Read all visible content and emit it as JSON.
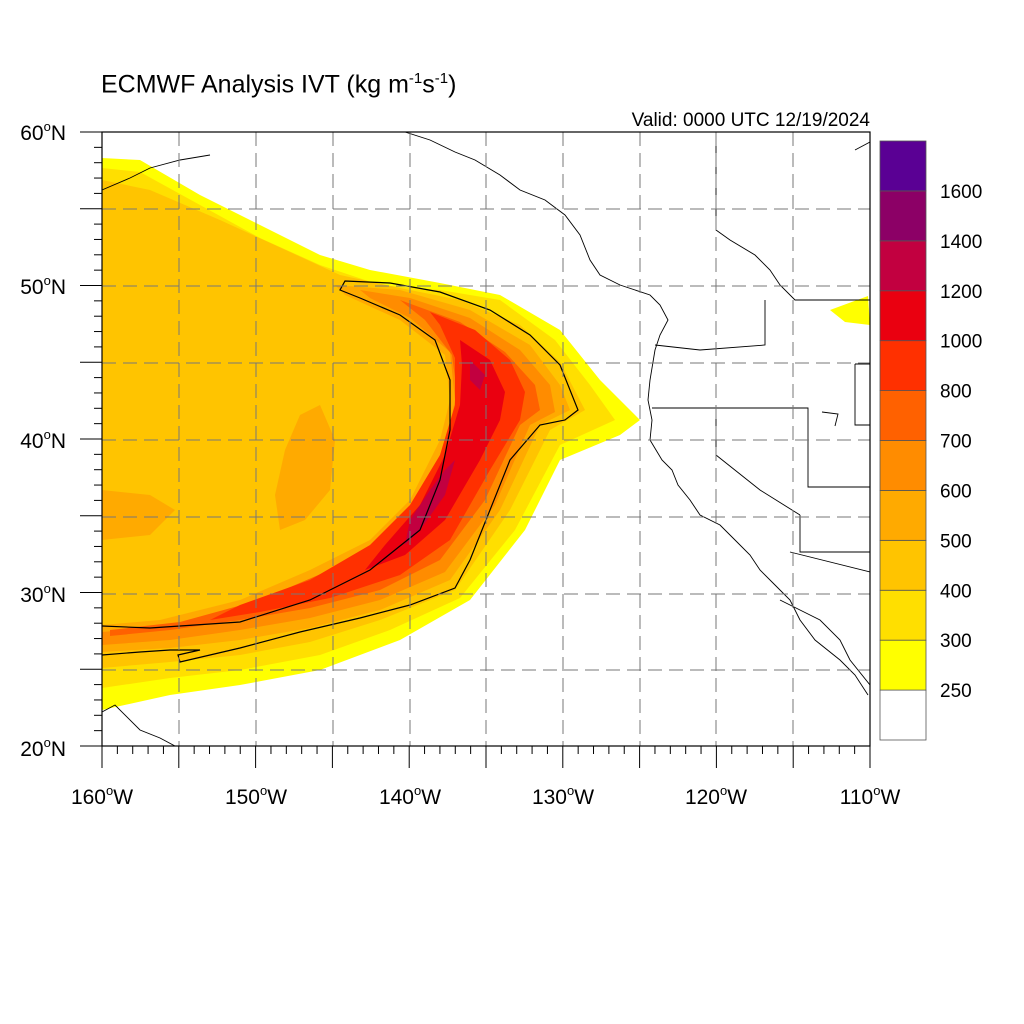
{
  "title": {
    "prefix": "ECMWF Analysis IVT (kg m",
    "exp1": "-1",
    "mid": "s",
    "exp2": "-1",
    "suffix": ")"
  },
  "valid_time": "Valid: 0000 UTC 12/19/2024",
  "map": {
    "projection": "lat-lon",
    "lon_range_deg": [
      -160,
      -110
    ],
    "lat_range_deg": [
      20,
      60
    ],
    "lon_ticks": [
      {
        "base": "160",
        "deg": "o",
        "hemi": "W"
      },
      {
        "base": "150",
        "deg": "o",
        "hemi": "W"
      },
      {
        "base": "140",
        "deg": "o",
        "hemi": "W"
      },
      {
        "base": "130",
        "deg": "o",
        "hemi": "W"
      },
      {
        "base": "120",
        "deg": "o",
        "hemi": "W"
      },
      {
        "base": "110",
        "deg": "o",
        "hemi": "W"
      }
    ],
    "lat_ticks": [
      {
        "base": "60",
        "deg": "o",
        "hemi": "N"
      },
      {
        "base": "50",
        "deg": "o",
        "hemi": "N"
      },
      {
        "base": "40",
        "deg": "o",
        "hemi": "N"
      },
      {
        "base": "30",
        "deg": "o",
        "hemi": "N"
      },
      {
        "base": "20",
        "deg": "o",
        "hemi": "N"
      }
    ],
    "gridlines": "dashed every 5 degrees"
  },
  "colorbar": {
    "levels": [
      "250",
      "300",
      "400",
      "500",
      "600",
      "700",
      "800",
      "1000",
      "1200",
      "1400",
      "1600"
    ],
    "colors": [
      "#ffffff",
      "#ffff00",
      "#ffdf00",
      "#ffc400",
      "#ffaa00",
      "#ff8c00",
      "#ff6100",
      "#ff3000",
      "#ea0010",
      "#c20040",
      "#8c0066",
      "#5a0094"
    ]
  }
}
